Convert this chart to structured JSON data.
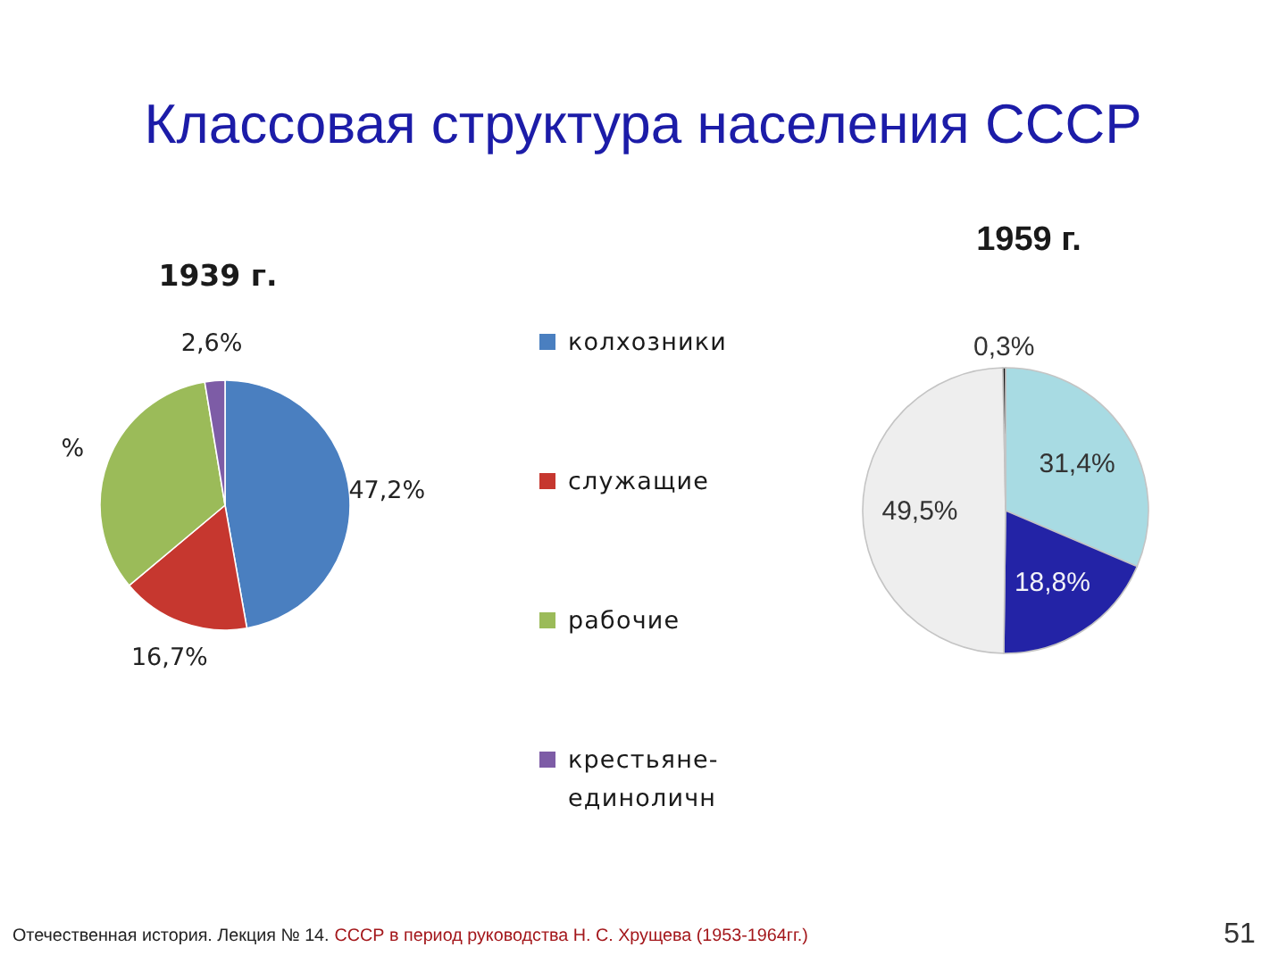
{
  "chart_data": [
    {
      "type": "other",
      "title": "Классовая структура населения СССР",
      "annotations": [
        "Отечественная история. Лекция № 14.",
        "СССР в период руководства Н. С. Хрущева (1953-1964гг.)",
        "51"
      ]
    },
    {
      "type": "pie",
      "title": "1939 г.",
      "categories": [
        "колхозники",
        "служащие",
        "рабочие",
        "крестьяне-единоличн"
      ],
      "values": [
        47.2,
        16.7,
        33.5,
        2.6
      ],
      "colors": [
        "#4a7fc0",
        "#c6372f",
        "#9bbb59",
        "#7d5ca6"
      ],
      "value_labels": [
        "47,2%",
        "16,7%",
        "%",
        "2,6%"
      ],
      "legend": "right"
    },
    {
      "type": "pie",
      "title": "1959 г.",
      "categories": [
        null,
        null,
        null,
        null
      ],
      "values": [
        31.4,
        18.8,
        49.5,
        0.3
      ],
      "colors": [
        "#a8dbe3",
        "#2323a6",
        "#eeeeee",
        "#111111"
      ],
      "value_labels": [
        "31,4%",
        "18,8%",
        "49,5%",
        "0,3%"
      ]
    }
  ]
}
